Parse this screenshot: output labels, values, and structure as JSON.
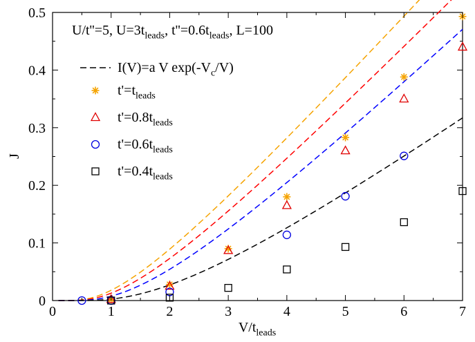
{
  "chart_data": {
    "type": "scatter",
    "annotation": {
      "parts": [
        {
          "t": "U/t''=5, U=3t"
        },
        {
          "t": "leads",
          "sub": true
        },
        {
          "t": ", t''=0.6t"
        },
        {
          "t": "leads",
          "sub": true
        },
        {
          "t": ", L=100"
        }
      ]
    },
    "xlabel": {
      "main": "V/t",
      "sub": "leads"
    },
    "ylabel": "J",
    "xlim": [
      0,
      7
    ],
    "ylim": [
      0,
      0.5
    ],
    "xticks": [
      0,
      1,
      2,
      3,
      4,
      5,
      6,
      7
    ],
    "yticks": [
      0,
      0.1,
      0.2,
      0.3,
      0.4,
      0.5
    ],
    "ytick_labels": [
      "0",
      "0.1",
      "0.2",
      "0.3",
      "0.4",
      "0.5"
    ],
    "grid": false,
    "legend_position": "top-left",
    "fit_legend": "I(V)=a V exp(-V",
    "fit_legend_sub": "c",
    "fit_legend_end": "/V)",
    "series": [
      {
        "name": "t'=t",
        "name_sub": "leads",
        "marker": "star",
        "color": "#f5a300",
        "fit_color": "#f5a300",
        "x": [
          1,
          2,
          3,
          4,
          5,
          6,
          7
        ],
        "y": [
          0.002,
          0.028,
          0.09,
          0.18,
          0.283,
          0.388,
          0.493
        ]
      },
      {
        "name": "t'=0.8t",
        "name_sub": "leads",
        "marker": "triangle",
        "color": "#e00000",
        "fit_color": "#ff0000",
        "x": [
          1,
          2,
          3,
          4,
          5,
          6,
          7
        ],
        "y": [
          0.002,
          0.025,
          0.087,
          0.165,
          0.26,
          0.35,
          0.44
        ]
      },
      {
        "name": "t'=0.6t",
        "name_sub": "leads",
        "marker": "circle",
        "color": "#0000e0",
        "fit_color": "#0000ff",
        "x": [
          0.5,
          1,
          2,
          4,
          5,
          6
        ],
        "y": [
          0.0,
          0.0,
          0.015,
          0.114,
          0.181,
          0.251
        ]
      },
      {
        "name": "t'=0.4t",
        "name_sub": "leads",
        "marker": "square",
        "color": "#000000",
        "fit_color": "#000000",
        "x": [
          1,
          2,
          3,
          4,
          5,
          6,
          7
        ],
        "y": [
          0.0,
          0.005,
          0.022,
          0.054,
          0.093,
          0.136,
          0.19
        ]
      }
    ],
    "fits": [
      {
        "series": "t'=t",
        "a": 0.1117,
        "Vc": 1.836,
        "x_from": 0.1,
        "x_to": 7.0
      },
      {
        "series": "t'=0.8t",
        "a": 0.1043,
        "Vc": 2.098,
        "x_from": 0.1,
        "x_to": 7.0
      },
      {
        "series": "t'=0.6t",
        "a": 0.0967,
        "Vc": 2.543,
        "x_from": 0.1,
        "x_to": 7.0
      },
      {
        "series": "t'=0.4t",
        "a": 0.0733,
        "Vc": 3.37,
        "x_from": 0.1,
        "x_to": 7.0
      }
    ]
  }
}
